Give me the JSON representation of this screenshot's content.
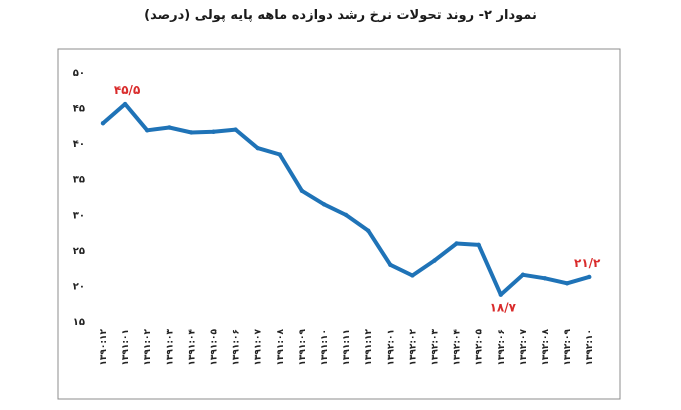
{
  "title": "نمودار ۲- روند تحولات نرخ رشد دوازده ماهه پایه پولی (درصد)",
  "chart_data": {
    "type": "line",
    "title": "نمودار ۲- روند تحولات نرخ رشد دوازده ماهه پایه پولی (درصد)",
    "xlabel": "",
    "ylabel": "",
    "ylim": [
      15,
      50
    ],
    "yticks": [
      15,
      20,
      25,
      30,
      35,
      40,
      45,
      50
    ],
    "ytick_labels": [
      "۱۵",
      "۲۰",
      "۲۵",
      "۳۰",
      "۳۵",
      "۴۰",
      "۴۵",
      "۵۰"
    ],
    "grid": false,
    "line_color": "#1f73b7",
    "label_color": "#d92b2b",
    "categories": [
      "۱۳۹۰:۱۲",
      "۱۳۹۱:۰۱",
      "۱۳۹۱:۰۲",
      "۱۳۹۱:۰۳",
      "۱۳۹۱:۰۴",
      "۱۳۹۱:۰۵",
      "۱۳۹۱:۰۶",
      "۱۳۹۱:۰۷",
      "۱۳۹۱:۰۸",
      "۱۳۹۱:۰۹",
      "۱۳۹۱:۱۰",
      "۱۳۹۱:۱۱",
      "۱۳۹۱:۱۲",
      "۱۳۹۲:۰۱",
      "۱۳۹۲:۰۲",
      "۱۳۹۲:۰۳",
      "۱۳۹۲:۰۴",
      "۱۳۹۲:۰۵",
      "۱۳۹۲:۰۶",
      "۱۳۹۲:۰۷",
      "۱۳۹۲:۰۸",
      "۱۳۹۲:۰۹",
      "۱۳۹۲:۱۰"
    ],
    "values": [
      42.8,
      45.5,
      41.8,
      42.2,
      41.5,
      41.6,
      41.9,
      39.3,
      38.4,
      33.3,
      31.4,
      29.9,
      27.7,
      22.9,
      21.4,
      23.5,
      25.9,
      25.7,
      18.7,
      21.5,
      21.0,
      20.3,
      21.2
    ],
    "data_labels": [
      {
        "index": 1,
        "text": "۴۵/۵"
      },
      {
        "index": 18,
        "text": "۱۸/۷"
      },
      {
        "index": 22,
        "text": "۲۱/۲"
      }
    ]
  }
}
